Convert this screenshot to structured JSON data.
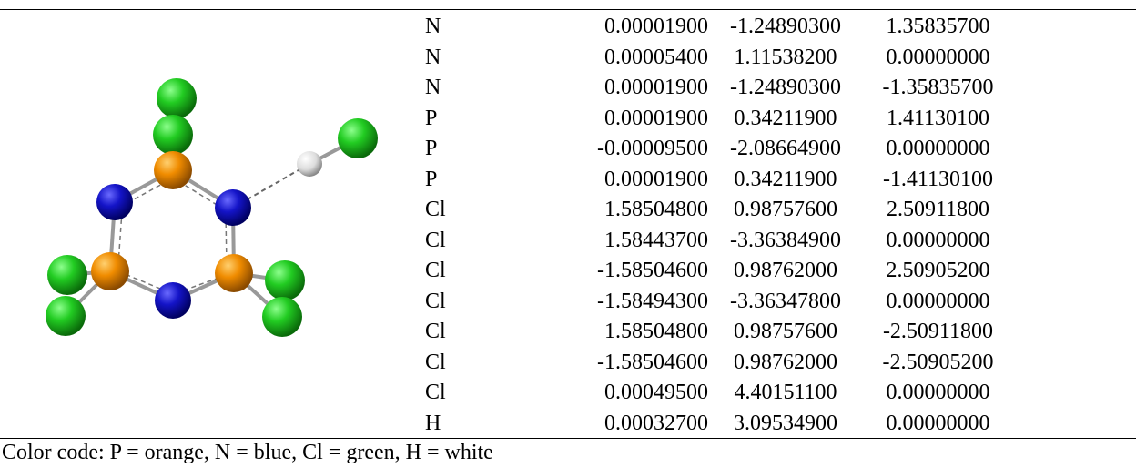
{
  "table": {
    "rows": [
      [
        "N",
        "0.00001900",
        "-1.24890300",
        "1.35835700"
      ],
      [
        "N",
        "0.00005400",
        "1.11538200",
        "0.00000000"
      ],
      [
        "N",
        "0.00001900",
        "-1.24890300",
        "-1.35835700"
      ],
      [
        "P",
        "0.00001900",
        "0.34211900",
        "1.41130100"
      ],
      [
        "P",
        "-0.00009500",
        "-2.08664900",
        "0.00000000"
      ],
      [
        "P",
        "0.00001900",
        "0.34211900",
        "-1.41130100"
      ],
      [
        "Cl",
        "1.58504800",
        "0.98757600",
        "2.50911800"
      ],
      [
        "Cl",
        "1.58443700",
        "-3.36384900",
        "0.00000000"
      ],
      [
        "Cl",
        "-1.58504600",
        "0.98762000",
        "2.50905200"
      ],
      [
        "Cl",
        "-1.58494300",
        "-3.36347800",
        "0.00000000"
      ],
      [
        "Cl",
        "1.58504800",
        "0.98757600",
        "-2.50911800"
      ],
      [
        "Cl",
        "-1.58504600",
        "0.98762000",
        "-2.50905200"
      ],
      [
        "Cl",
        "0.00049500",
        "4.40151100",
        "0.00000000"
      ],
      [
        "H",
        "0.00032700",
        "3.09534900",
        "0.00000000"
      ]
    ]
  },
  "caption": "Color code: P = orange, N = blue, Cl = green, H = white"
}
